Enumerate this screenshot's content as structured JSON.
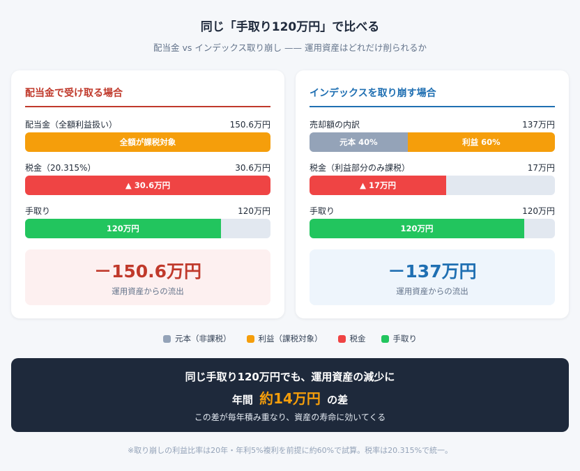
{
  "header": {
    "title": "同じ「手取り120万円」で比べる",
    "subtitle": "配当金 vs インデックス取り崩し —— 運用資産はどれだけ削られるか"
  },
  "colors": {
    "principal": "#94a3b8",
    "profit": "#f59e0b",
    "tax": "#ef4444",
    "net": "#22c55e",
    "left_accent": "#c0392b",
    "right_accent": "#1f6fb2"
  },
  "left_card": {
    "title": "配当金で受け取る場合",
    "rows": [
      {
        "label": "配当金（全額利益扱い）",
        "value": "150.6万円",
        "bar_text": "全額が課税対象",
        "fraction": 1.0
      },
      {
        "label": "税金（20.315%）",
        "value": "30.6万円",
        "bar_text": "▲ 30.6万円",
        "fraction": 1.0
      },
      {
        "label": "手取り",
        "value": "120万円",
        "bar_text": "120万円",
        "fraction": 0.797
      }
    ],
    "summary": {
      "value": "－150.6万円",
      "caption": "運用資産からの流出"
    }
  },
  "right_card": {
    "title": "インデックスを取り崩す場合",
    "rows": [
      {
        "label": "売却額の内訳",
        "value": "137万円",
        "segments": [
          {
            "text": "元本 40%",
            "fraction": 0.4,
            "kind": "principal"
          },
          {
            "text": "利益 60%",
            "fraction": 0.6,
            "kind": "profit"
          }
        ]
      },
      {
        "label": "税金（利益部分のみ課税）",
        "value": "17万円",
        "bar_text": "▲ 17万円",
        "fraction": 0.557
      },
      {
        "label": "手取り",
        "value": "120万円",
        "bar_text": "120万円",
        "fraction": 0.875
      }
    ],
    "summary": {
      "value": "－137万円",
      "caption": "運用資産からの流出"
    }
  },
  "legend": [
    {
      "label": "元本（非課税）",
      "kind": "principal"
    },
    {
      "label": "利益（課税対象）",
      "kind": "profit"
    },
    {
      "label": "税金",
      "kind": "tax"
    },
    {
      "label": "手取り",
      "kind": "net"
    }
  ],
  "banner": {
    "line1": "同じ手取り120万円でも、運用資産の減少に",
    "line2_prefix": "年間",
    "line2_highlight": "約14万円",
    "line2_suffix": "の差",
    "line3": "この差が毎年積み重なり、資産の寿命に効いてくる"
  },
  "footnote": "※取り崩しの利益比率は20年・年利5%複利を前提に約60%で試算。税率は20.315%で統一。"
}
